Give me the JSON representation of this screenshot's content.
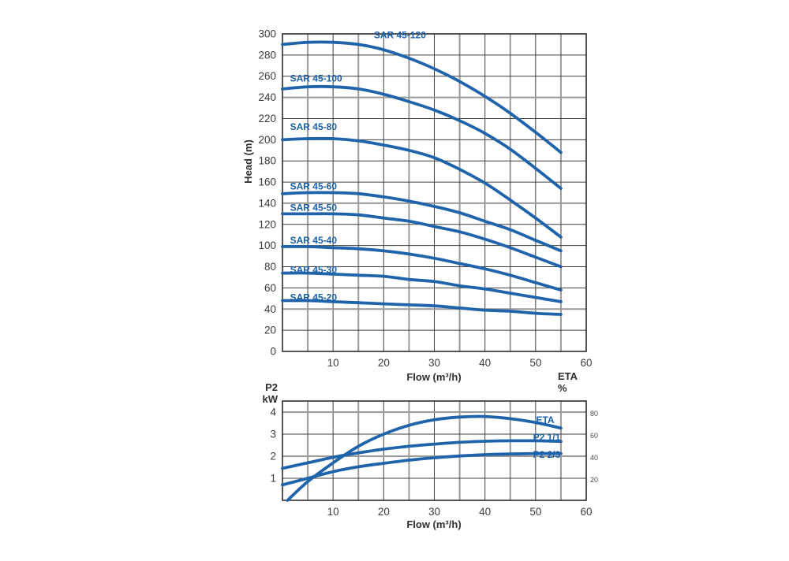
{
  "colors": {
    "curve_blue": "#1f64ab",
    "label_blue": "#1a5fa9",
    "grid_dark": "#3f3f3f",
    "grid_gray": "#9a9a9a",
    "frame": "#2b2b2b",
    "tick_text": "#3a3a3a",
    "right_tick_text": "#4a4a4a"
  },
  "chart_data": [
    {
      "type": "line",
      "name": "head-flow-curves",
      "xlabel": "Flow (m³/h)",
      "ylabel": "Head (m)",
      "xlim": [
        0,
        60
      ],
      "ylim": [
        0,
        300
      ],
      "x_ticks": [
        10,
        20,
        30,
        40,
        50,
        60
      ],
      "y_ticks": [
        0,
        20,
        40,
        60,
        80,
        100,
        120,
        140,
        160,
        180,
        200,
        220,
        240,
        260,
        280,
        300
      ],
      "grid": "on",
      "x_minor_step": 5,
      "x": [
        0,
        5,
        10,
        15,
        20,
        25,
        30,
        35,
        40,
        45,
        50,
        55
      ],
      "series": [
        {
          "name": "SAR 45-120",
          "values": [
            290,
            292,
            292,
            290,
            285,
            277,
            267,
            255,
            241,
            225,
            207,
            188
          ],
          "label_pos": {
            "x": 23.2,
            "v": 299,
            "anchor": "middle"
          }
        },
        {
          "name": "SAR 45-100",
          "values": [
            248,
            250,
            250,
            248,
            243,
            236,
            228,
            218,
            206,
            191,
            173,
            154
          ],
          "label_pos": {
            "x": 1.5,
            "v": 258,
            "anchor": "start"
          }
        },
        {
          "name": "SAR 45-80",
          "values": [
            200,
            201,
            201,
            199,
            195,
            190,
            183,
            172,
            159,
            143,
            126,
            108
          ],
          "label_pos": {
            "x": 1.5,
            "v": 212,
            "anchor": "start"
          }
        },
        {
          "name": "SAR 45-60",
          "values": [
            149,
            150,
            150,
            149,
            146,
            142,
            137,
            131,
            123,
            115,
            105,
            95
          ],
          "label_pos": {
            "x": 1.5,
            "v": 156,
            "anchor": "start"
          }
        },
        {
          "name": "SAR 45-50",
          "values": [
            130,
            130,
            130,
            129,
            126,
            123,
            118,
            113,
            106,
            98,
            89,
            80
          ],
          "label_pos": {
            "x": 1.5,
            "v": 136,
            "anchor": "start"
          }
        },
        {
          "name": "SAR 45-40",
          "values": [
            99,
            99,
            98,
            97,
            95,
            92,
            88,
            83,
            78,
            72,
            65,
            58
          ],
          "label_pos": {
            "x": 1.5,
            "v": 105,
            "anchor": "start"
          }
        },
        {
          "name": "SAR 45-30",
          "values": [
            74,
            74,
            73,
            72,
            71,
            68,
            66,
            62,
            59,
            55,
            51,
            47
          ],
          "label_pos": {
            "x": 1.5,
            "v": 77,
            "anchor": "start"
          }
        },
        {
          "name": "SAR 45-20",
          "values": [
            48,
            48,
            47,
            46,
            45,
            44,
            43,
            41,
            39,
            38,
            36,
            35
          ],
          "label_pos": {
            "x": 1.5,
            "v": 51,
            "anchor": "start"
          }
        }
      ]
    },
    {
      "type": "line",
      "name": "power-and-efficiency-curves",
      "xlabel": "Flow (m³/h)",
      "ylabel_left_lines": [
        "P2",
        "kW"
      ],
      "ylabel_right_lines": [
        "ETA",
        "%"
      ],
      "xlim": [
        0,
        60
      ],
      "ylim_left": [
        0,
        4.5
      ],
      "ylim_right": [
        0,
        90
      ],
      "x_ticks": [
        10,
        20,
        30,
        40,
        50,
        60
      ],
      "y_ticks_left": [
        1,
        2,
        3,
        4
      ],
      "y_ticks_right": [
        20,
        40,
        60,
        80
      ],
      "grid": "on",
      "x_minor_step": 5,
      "x": [
        0,
        5,
        10,
        15,
        20,
        25,
        30,
        35,
        40,
        45,
        50,
        55
      ],
      "series": [
        {
          "name": "ETA",
          "axis": "right",
          "unit": "%",
          "x": [
            1,
            5,
            10,
            15,
            20,
            25,
            30,
            35,
            40,
            45,
            50,
            55
          ],
          "values": [
            0,
            17,
            34,
            49,
            60,
            68,
            73,
            75.5,
            76,
            74,
            70.5,
            65.5
          ],
          "label_pos": {
            "x": 51.9,
            "v": 73,
            "anchor": "middle"
          }
        },
        {
          "name": "P2 1/1",
          "axis": "left",
          "unit": "kW",
          "values": [
            1.45,
            1.7,
            1.95,
            2.15,
            2.32,
            2.45,
            2.55,
            2.63,
            2.68,
            2.7,
            2.7,
            2.67
          ],
          "label_pos": {
            "x": 52.2,
            "v": 2.86,
            "anchor": "middle"
          }
        },
        {
          "name": "P2 2/3",
          "axis": "left",
          "unit": "kW",
          "values": [
            0.7,
            1.0,
            1.3,
            1.52,
            1.68,
            1.82,
            1.93,
            2.01,
            2.07,
            2.1,
            2.12,
            2.12
          ],
          "label_pos": {
            "x": 52.2,
            "v": 2.07,
            "anchor": "middle"
          }
        }
      ]
    }
  ]
}
